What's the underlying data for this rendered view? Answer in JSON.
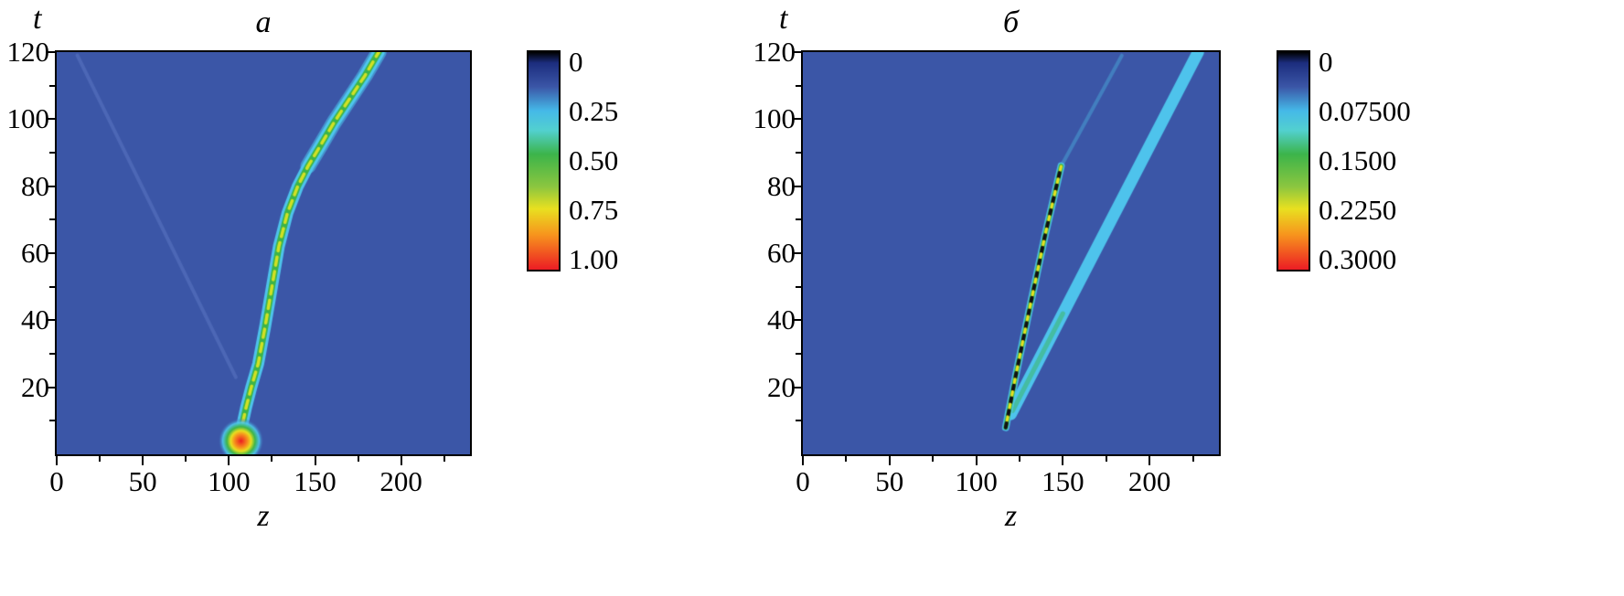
{
  "figure": {
    "background": "#ffffff"
  },
  "palette": {
    "map_background": "#3b56a7",
    "cyan": "#4fc9ef",
    "green": "#3cb44a",
    "yellow": "#e8e020",
    "orange": "#f7941d",
    "red": "#ec1c24",
    "dark": "#111111",
    "faint_blue": "#5873bf"
  },
  "chart_data": [
    {
      "type": "heatmap",
      "panel": "left",
      "title": "a",
      "xlabel": "z",
      "ylabel": "t",
      "xlim": [
        0,
        240
      ],
      "ylim": [
        0,
        120
      ],
      "x_ticks": [
        0,
        50,
        100,
        150,
        200
      ],
      "x_minor_ticks": [
        25,
        75,
        125,
        175,
        225
      ],
      "y_ticks": [
        20,
        40,
        60,
        80,
        100,
        120
      ],
      "y_minor_ticks": [
        10,
        30,
        50,
        70,
        90,
        110
      ],
      "background": "#3b56a7",
      "colorbar": {
        "labels": [
          "0",
          "0.25",
          "0.50",
          "0.75",
          "1.00"
        ],
        "stops": [
          {
            "pos": 0.0,
            "color": "#000000"
          },
          {
            "pos": 0.05,
            "color": "#1c2d7e"
          },
          {
            "pos": 0.16,
            "color": "#3b56a7"
          },
          {
            "pos": 0.27,
            "color": "#45b9e8"
          },
          {
            "pos": 0.36,
            "color": "#52d0cf"
          },
          {
            "pos": 0.47,
            "color": "#3cb44a"
          },
          {
            "pos": 0.62,
            "color": "#8cc63f"
          },
          {
            "pos": 0.72,
            "color": "#e8e020"
          },
          {
            "pos": 0.84,
            "color": "#f7941d"
          },
          {
            "pos": 1.0,
            "color": "#ec1c24"
          }
        ]
      },
      "features": [
        {
          "kind": "line",
          "name": "weak-reflection-trace",
          "points": [
            [
              12,
              119
            ],
            [
              104,
              23
            ]
          ],
          "strokes": [
            {
              "color": "#5873bf",
              "width": 4,
              "alpha": 0.6
            }
          ]
        },
        {
          "kind": "line",
          "name": "upper-widening",
          "points": [
            [
              146,
              86
            ],
            [
              153,
              92
            ],
            [
              161,
              99
            ],
            [
              170,
              106
            ],
            [
              179,
              113
            ],
            [
              187,
              120
            ]
          ],
          "strokes": [
            {
              "color": "#4fc9ef",
              "width": 17,
              "alpha": 0.55
            }
          ]
        },
        {
          "kind": "line",
          "name": "main-soliton-trajectory",
          "points": [
            [
              104,
              1
            ],
            [
              107,
              7
            ],
            [
              110,
              14
            ],
            [
              113,
              20
            ],
            [
              117,
              27
            ],
            [
              121,
              38
            ],
            [
              125,
              50
            ],
            [
              129,
              62
            ],
            [
              134,
              72
            ],
            [
              140,
              80
            ],
            [
              146,
              86
            ],
            [
              153,
              92
            ],
            [
              161,
              99
            ],
            [
              170,
              106
            ],
            [
              179,
              113
            ],
            [
              187,
              120
            ]
          ],
          "strokes": [
            {
              "color": "#4fc9ef",
              "width": 13,
              "alpha": 0.95
            },
            {
              "color": "#3cb44a",
              "width": 7
            },
            {
              "color": "#d9e422",
              "width": 3.5,
              "dash": [
                9,
                7
              ],
              "alpha": 0.95
            }
          ]
        },
        {
          "kind": "blob",
          "name": "source-pulse",
          "z": 107,
          "t": 4,
          "radius": 25,
          "stops": [
            {
              "pos": 0.0,
              "color": "#ec1c24"
            },
            {
              "pos": 0.3,
              "color": "#f7941d"
            },
            {
              "pos": 0.45,
              "color": "#e8e020"
            },
            {
              "pos": 0.62,
              "color": "#3cb44a"
            },
            {
              "pos": 0.8,
              "color": "rgba(79,201,239,0.9)"
            },
            {
              "pos": 1.0,
              "color": "rgba(59,86,167,0)"
            }
          ]
        }
      ]
    },
    {
      "type": "heatmap",
      "panel": "right",
      "title": "б",
      "xlabel": "z",
      "ylabel": "t",
      "xlim": [
        0,
        240
      ],
      "ylim": [
        0,
        120
      ],
      "x_ticks": [
        0,
        50,
        100,
        150,
        200
      ],
      "x_minor_ticks": [
        25,
        75,
        125,
        175,
        225
      ],
      "y_ticks": [
        20,
        40,
        60,
        80,
        100,
        120
      ],
      "y_minor_ticks": [
        10,
        30,
        50,
        70,
        90,
        110
      ],
      "background": "#3b56a7",
      "colorbar": {
        "labels": [
          "0",
          "0.07500",
          "0.1500",
          "0.2250",
          "0.3000"
        ],
        "stops": [
          {
            "pos": 0.0,
            "color": "#000000"
          },
          {
            "pos": 0.05,
            "color": "#1c2d7e"
          },
          {
            "pos": 0.16,
            "color": "#3b56a7"
          },
          {
            "pos": 0.27,
            "color": "#45b9e8"
          },
          {
            "pos": 0.36,
            "color": "#52d0cf"
          },
          {
            "pos": 0.47,
            "color": "#3cb44a"
          },
          {
            "pos": 0.62,
            "color": "#8cc63f"
          },
          {
            "pos": 0.72,
            "color": "#e8e020"
          },
          {
            "pos": 0.84,
            "color": "#f7941d"
          },
          {
            "pos": 1.0,
            "color": "#ec1c24"
          }
        ]
      },
      "features": [
        {
          "kind": "line",
          "name": "radiation-tail",
          "points": [
            [
              149,
              86
            ],
            [
              166,
              102
            ],
            [
              184,
              119
            ]
          ],
          "strokes": [
            {
              "color": "#4fc9ef",
              "width": 4,
              "alpha": 0.35
            }
          ]
        },
        {
          "kind": "line",
          "name": "fast-soliton-band",
          "points": [
            [
              120,
              12
            ],
            [
              147,
              39
            ],
            [
              175,
              67
            ],
            [
              202,
              94
            ],
            [
              228,
              120
            ]
          ],
          "strokes": [
            {
              "color": "#4fc9ef",
              "width": 13,
              "alpha": 0.95
            }
          ]
        },
        {
          "kind": "line",
          "name": "band-green-core",
          "points": [
            [
              121,
              13
            ],
            [
              135,
              27
            ],
            [
              150,
              42
            ]
          ],
          "strokes": [
            {
              "color": "#3cb44a",
              "width": 5,
              "alpha": 0.45
            }
          ]
        },
        {
          "kind": "line",
          "name": "slow-soliton-line",
          "points": [
            [
              117,
              8
            ],
            [
              123,
              24
            ],
            [
              131,
              44
            ],
            [
              140,
              66
            ],
            [
              149,
              86
            ]
          ],
          "strokes": [
            {
              "color": "#4fc9ef",
              "width": 8,
              "alpha": 0.85
            },
            {
              "color": "#3cb44a",
              "width": 5
            },
            {
              "color": "#111111",
              "width": 4,
              "dash": [
                5,
                9
              ]
            },
            {
              "color": "#e8e020",
              "width": 3,
              "dash": [
                4,
                10
              ],
              "dashOffset": 6
            }
          ]
        }
      ]
    }
  ]
}
